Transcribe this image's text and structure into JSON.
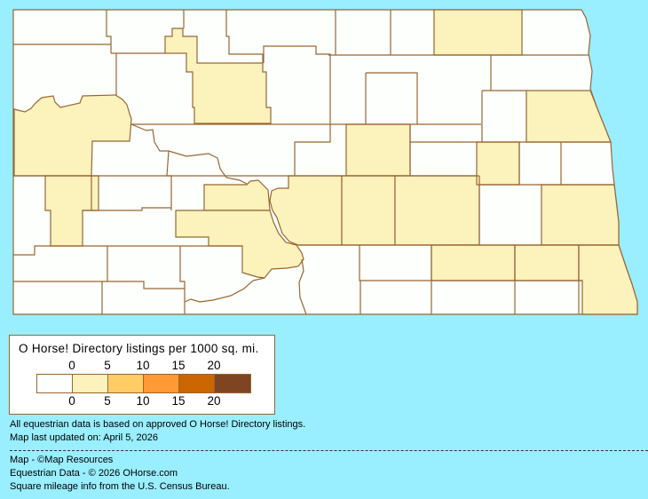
{
  "legend": {
    "title": "O Horse! Directory listings per 1000 sq. mi.",
    "ticks_top": [
      "0",
      "5",
      "10",
      "15",
      "20"
    ],
    "ticks_bottom": [
      "0",
      "5",
      "10",
      "15",
      "20"
    ],
    "colors": [
      "#FCFFFC",
      "#FCF2BC",
      "#FFCC66",
      "#FF9933",
      "#CC6600",
      "#7F4421"
    ]
  },
  "map": {
    "region": "North Dakota counties",
    "background": "#99EEFF",
    "border_color": "#996633"
  },
  "notes": {
    "line1": "All equestrian data is based on approved O Horse! Directory listings.",
    "line2": "Map last updated on: April 5, 2026"
  },
  "credits": {
    "map": "Map - ©Map Resources",
    "data": "Equestrian Data - © 2026 OHorse.com",
    "census": "Square mileage info from the U.S. Census Bureau."
  }
}
